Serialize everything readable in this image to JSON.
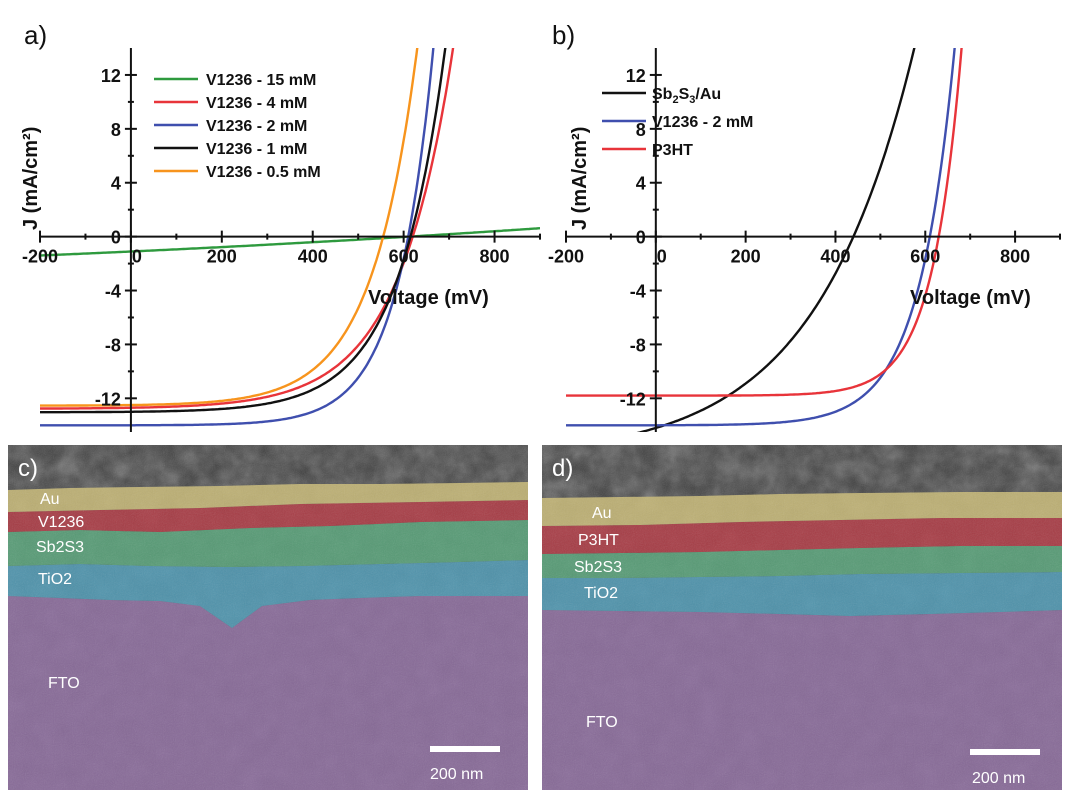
{
  "chart_data": [
    {
      "panel": "a)",
      "type": "line",
      "xlabel": "Voltage (mV)",
      "ylabel": "J (mA/cm²)",
      "xlim": [
        -200,
        900
      ],
      "ylim": [
        -14.5,
        14
      ],
      "xticks": [
        -200,
        0,
        200,
        400,
        600,
        800
      ],
      "yticks": [
        -12,
        -8,
        -4,
        0,
        4,
        8,
        12
      ],
      "legend_position": "top-left",
      "series": [
        {
          "name": "V1236 - 15 mM",
          "color": "#2e9a3e",
          "jsc": -1.4,
          "voc": 2200,
          "n": 2000,
          "curve": "linear",
          "slope": 0.0014
        },
        {
          "name": "V1236 - 4 mM",
          "color": "#e8343a",
          "jsc": -12.7,
          "voc": 620,
          "n": 120
        },
        {
          "name": "V1236 - 2 mM",
          "color": "#3f4fae",
          "jsc": -14.0,
          "voc": 610,
          "n": 80
        },
        {
          "name": "V1236 - 1 mM",
          "color": "#111111",
          "jsc": -13.0,
          "voc": 615,
          "n": 105
        },
        {
          "name": "V1236 - 0.5 mM",
          "color": "#f7941d",
          "jsc": -12.5,
          "voc": 555,
          "n": 100
        }
      ]
    },
    {
      "panel": "b)",
      "type": "line",
      "xlabel": "Voltage (mV)",
      "ylabel": "J (mA/cm²)",
      "xlim": [
        -200,
        900
      ],
      "ylim": [
        -14.5,
        14
      ],
      "xticks": [
        -200,
        0,
        200,
        400,
        600,
        800
      ],
      "yticks": [
        -12,
        -8,
        -4,
        0,
        4,
        8,
        12
      ],
      "legend_position": "top-left",
      "series": [
        {
          "name_main": "Sb",
          "name_sub1": "2",
          "name_mid": "S",
          "name_sub2": "3",
          "name_end": "/Au",
          "color": "#111111",
          "jsc": -14.2,
          "voc": 440,
          "n": 220
        },
        {
          "name": "V1236 - 2 mM",
          "color": "#3f4fae",
          "jsc": -14.0,
          "voc": 610,
          "n": 80
        },
        {
          "name": "P3HT",
          "color": "#e8343a",
          "jsc": -11.8,
          "voc": 630,
          "n": 65
        }
      ]
    }
  ],
  "sem": [
    {
      "panel": "c)",
      "layers": [
        "Au",
        "V1236",
        "Sb2S3",
        "TiO2",
        "FTO"
      ],
      "scale_bar": "200 nm"
    },
    {
      "panel": "d)",
      "layers": [
        "Au",
        "P3HT",
        "Sb2S3",
        "TiO2",
        "FTO"
      ],
      "scale_bar": "200 nm"
    }
  ],
  "colors": {
    "au": "#c9bb78",
    "red_layer": "#b23a44",
    "sb2s3": "#58a47a",
    "tio2": "#4e9bb6",
    "fto": "#8e6da0",
    "sem_background": "#3a3a3a"
  }
}
